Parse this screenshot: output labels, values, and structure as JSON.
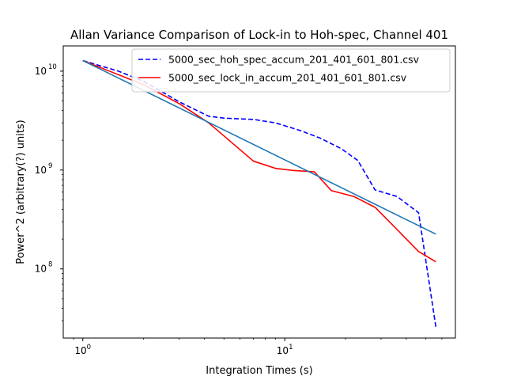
{
  "chart_data": {
    "type": "line",
    "title": "Allan Variance Comparison of Lock-in to Hoh-spec, Channel 401",
    "xlabel": "Integration Times (s)",
    "ylabel": "Power^2 (arbitrary(?) units)",
    "xscale": "log",
    "yscale": "log",
    "xlim": [
      0.8,
      70
    ],
    "ylim": [
      20000000,
      18000000000
    ],
    "legend_position": "top-right",
    "x_major_ticks": [
      {
        "value": 1,
        "base": "10",
        "exp": "0"
      },
      {
        "value": 10,
        "base": "10",
        "exp": "1"
      }
    ],
    "y_major_ticks": [
      {
        "value": 100000000,
        "base": "10",
        "exp": "8"
      },
      {
        "value": 1000000000,
        "base": "10",
        "exp": "9"
      },
      {
        "value": 10000000000,
        "base": "10",
        "exp": "10"
      }
    ],
    "series": [
      {
        "name": "5000_sec_hoh_spec_accum_201_401_601_801.csv",
        "color": "#0000ff",
        "dash": true,
        "x": [
          1,
          1.5,
          2,
          3,
          4.2,
          5,
          7,
          9,
          12,
          15,
          19,
          23,
          28,
          36,
          46,
          56
        ],
        "values": [
          12800000000,
          10000000000,
          7900000000,
          4900000000,
          3500000000,
          3350000000,
          3250000000,
          3000000000,
          2500000000,
          2100000000,
          1650000000,
          1250000000,
          630000000,
          540000000,
          370000000,
          26000000
        ]
      },
      {
        "name": "5000_sec_lock_in_accum_201_401_601_801.csv",
        "color": "#ff0000",
        "dash": false,
        "x": [
          1,
          2,
          3,
          4.2,
          7,
          9,
          11,
          14,
          17,
          22,
          28,
          36,
          46,
          56
        ],
        "values": [
          12800000000,
          7300000000,
          4700000000,
          3000000000,
          1230000000,
          1040000000,
          990000000,
          960000000,
          620000000,
          540000000,
          420000000,
          250000000,
          150000000,
          118000000
        ]
      },
      {
        "color": "#1f77b4",
        "dash": false,
        "x": [
          1,
          56
        ],
        "values": [
          12800000000,
          225000000
        ]
      }
    ]
  }
}
